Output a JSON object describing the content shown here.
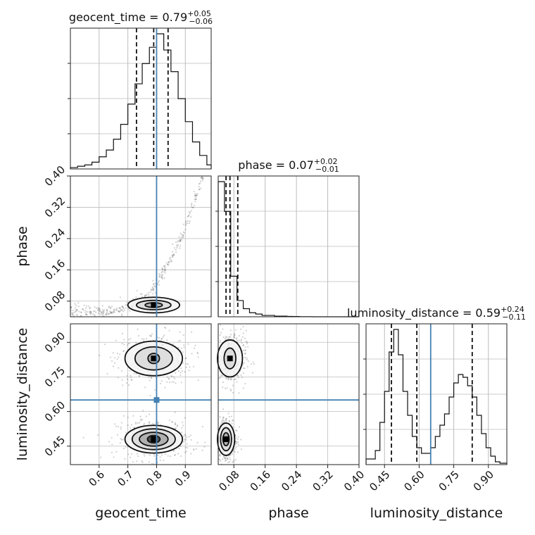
{
  "chart_data": {
    "type": "corner",
    "parameters": [
      "geocent_time",
      "phase",
      "luminosity_distance"
    ],
    "axis_labels": {
      "geocent_time": "geocent_time",
      "phase": "phase",
      "luminosity_distance": "luminosity_distance"
    },
    "ranges": {
      "geocent_time": [
        0.5,
        0.99
      ],
      "phase": [
        0.04,
        0.4
      ],
      "luminosity_distance": [
        0.37,
        0.98
      ]
    },
    "ticks": {
      "geocent_time": [
        "0.6",
        "0.7",
        "0.8",
        "0.9"
      ],
      "phase": [
        "0.08",
        "0.16",
        "0.24",
        "0.32",
        "0.40"
      ],
      "luminosity_distance": [
        "0.45",
        "0.60",
        "0.75",
        "0.90"
      ]
    },
    "titles": [
      {
        "param": "geocent_time",
        "text": "geocent_time = 0.79",
        "plus": "+0.05",
        "minus": "−0.06"
      },
      {
        "param": "phase",
        "text": "phase = 0.07",
        "plus": "+0.02",
        "minus": "−0.01"
      },
      {
        "param": "luminosity_distance",
        "text": "luminosity_distance = 0.59",
        "plus": "+0.24",
        "minus": "−0.11"
      }
    ],
    "truths": {
      "geocent_time": 0.8,
      "phase": null,
      "luminosity_distance": 0.65
    },
    "quantiles": {
      "geocent_time": [
        0.73,
        0.79,
        0.84
      ],
      "phase": [
        0.06,
        0.07,
        0.09
      ],
      "luminosity_distance": [
        0.48,
        0.59,
        0.83
      ]
    },
    "histograms": {
      "geocent_time": {
        "edges": [
          0.5,
          0.525,
          0.55,
          0.575,
          0.6,
          0.625,
          0.65,
          0.675,
          0.7,
          0.725,
          0.75,
          0.775,
          0.8,
          0.825,
          0.85,
          0.875,
          0.9,
          0.925,
          0.95,
          0.975,
          0.99
        ],
        "counts": [
          1,
          2,
          3,
          5,
          9,
          14,
          22,
          33,
          48,
          63,
          78,
          90,
          100,
          88,
          72,
          52,
          35,
          20,
          10,
          3
        ]
      },
      "phase": {
        "edges": [
          0.04,
          0.056,
          0.072,
          0.088,
          0.104,
          0.12,
          0.136,
          0.152,
          0.168,
          0.184,
          0.2,
          0.216,
          0.232,
          0.248,
          0.264,
          0.28,
          0.4
        ],
        "counts": [
          100,
          78,
          30,
          12,
          6,
          3,
          2,
          1,
          1,
          0.5,
          0.5,
          0.3,
          0.2,
          0.1,
          0.1,
          0
        ]
      },
      "luminosity_distance": {
        "edges": [
          0.37,
          0.39,
          0.41,
          0.43,
          0.45,
          0.47,
          0.49,
          0.51,
          0.53,
          0.55,
          0.57,
          0.59,
          0.61,
          0.63,
          0.65,
          0.67,
          0.69,
          0.71,
          0.73,
          0.75,
          0.77,
          0.79,
          0.81,
          0.83,
          0.85,
          0.87,
          0.89,
          0.91,
          0.93,
          0.95,
          0.98
        ],
        "counts": [
          4,
          4,
          10,
          30,
          52,
          80,
          96,
          78,
          52,
          35,
          20,
          12,
          8,
          8,
          12,
          20,
          28,
          36,
          48,
          58,
          64,
          62,
          56,
          48,
          35,
          22,
          12,
          6,
          2,
          1
        ]
      }
    },
    "contours_2d": [
      {
        "x": "geocent_time",
        "y": "phase",
        "center": [
          0.79,
          0.07
        ],
        "levels": [
          [
            0.09,
            0.02
          ],
          [
            0.06,
            0.012
          ],
          [
            0.03,
            0.006
          ]
        ]
      },
      {
        "x": "geocent_time",
        "y": "luminosity_distance",
        "center": [
          0.79,
          0.83
        ],
        "levels": [
          [
            0.1,
            0.075
          ],
          [
            0.065,
            0.05
          ],
          [
            0.02,
            0.022
          ]
        ]
      },
      {
        "x": "geocent_time",
        "y": "luminosity_distance",
        "center": [
          0.79,
          0.48
        ],
        "levels": [
          [
            0.1,
            0.06
          ],
          [
            0.075,
            0.045
          ],
          [
            0.05,
            0.03
          ],
          [
            0.022,
            0.016
          ]
        ]
      },
      {
        "x": "phase",
        "y": "luminosity_distance",
        "center": [
          0.07,
          0.83
        ],
        "levels": [
          [
            0.032,
            0.08
          ],
          [
            0.015,
            0.045
          ]
        ]
      },
      {
        "x": "phase",
        "y": "luminosity_distance",
        "center": [
          0.06,
          0.48
        ],
        "levels": [
          [
            0.022,
            0.07
          ],
          [
            0.014,
            0.05
          ],
          [
            0.008,
            0.028
          ]
        ]
      }
    ],
    "grid": true
  }
}
